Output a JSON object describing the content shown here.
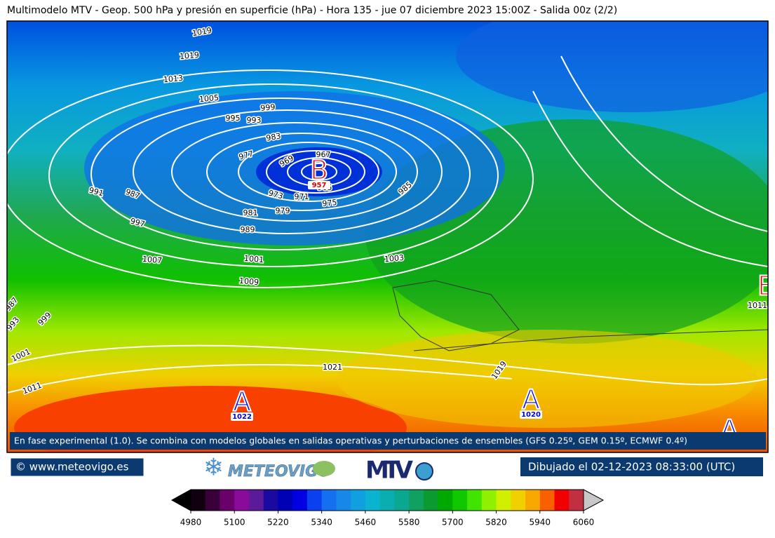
{
  "header": {
    "title": "Multimodelo MTV - Geop. 500 hPa y presión en superficie (hPa) - Hora 135 - jue 07 diciembre 2023 15:00Z - Salida 00z (2/2)"
  },
  "isobar_labels": [
    1019,
    1019,
    1013,
    1005,
    999,
    995,
    993,
    983,
    977,
    969,
    967,
    965,
    973,
    971,
    975,
    985,
    991,
    987,
    997,
    981,
    979,
    989,
    1001,
    1003,
    1007,
    1009,
    987,
    993,
    999,
    1001,
    1011,
    1021,
    1019,
    1011
  ],
  "pressure_centers": [
    {
      "letter": "B",
      "value": 957
    },
    {
      "letter": "A",
      "value": 1022
    },
    {
      "letter": "A",
      "value": 1020
    },
    {
      "letter": "B"
    },
    {
      "letter": "A"
    }
  ],
  "notice": "En fase experimental (1.0). Se combina con modelos globales en salidas operativas y perturbaciones de ensembles (GFS 0.25º, GEM 0.15º, ECMWF 0.4º)",
  "footer": {
    "website": "© www.meteovigo.es",
    "drawn": "Dibujado el 02-12-2023 08:33:00 (UTC)",
    "logos": [
      "METEOVIGO",
      "MTV"
    ]
  },
  "colorbar": {
    "range": [
      4980,
      6060
    ],
    "ticks": [
      4980,
      5100,
      5220,
      5340,
      5460,
      5580,
      5700,
      5820,
      5940,
      6060
    ],
    "colors": [
      "#100010",
      "#3a003a",
      "#6a006a",
      "#8a0a9a",
      "#5a1a9a",
      "#1a0aa0",
      "#0000b4",
      "#0000e0",
      "#0a40f0",
      "#1470f0",
      "#1888e8",
      "#10a0e0",
      "#0ab4d0",
      "#0aaeb0",
      "#0aa890",
      "#10a060",
      "#0a9a30",
      "#00a800",
      "#10c800",
      "#40e400",
      "#90f000",
      "#d0f000",
      "#f0d000",
      "#f8a800",
      "#f86000",
      "#f00000",
      "#c03040"
    ],
    "under_color": "#000000",
    "over_color": "#c8c8c8"
  }
}
